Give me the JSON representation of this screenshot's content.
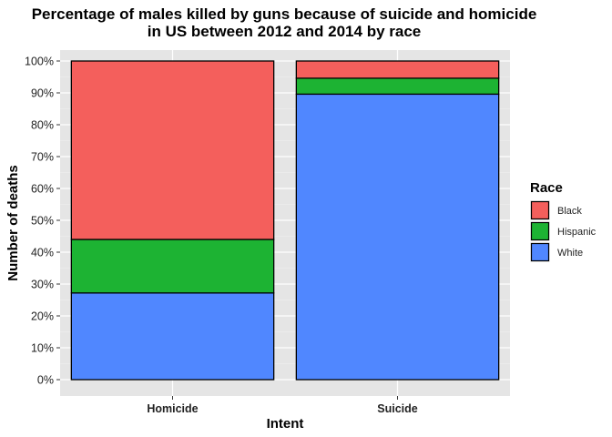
{
  "chart_data": {
    "type": "bar",
    "stacked": true,
    "title": [
      "Percentage of males killed by guns because of suicide and homicide",
      "in US between 2012 and 2014 by race"
    ],
    "xlabel": "Intent",
    "ylabel": "Number of deaths",
    "categories": [
      "Homicide",
      "Suicide"
    ],
    "ylim": [
      0,
      1
    ],
    "yticks": [
      0,
      0.1,
      0.2,
      0.3,
      0.4,
      0.5,
      0.6,
      0.7,
      0.8,
      0.9,
      1.0
    ],
    "ytick_labels": [
      "0%",
      "10%",
      "20%",
      "30%",
      "40%",
      "50%",
      "60%",
      "70%",
      "80%",
      "90%",
      "100%"
    ],
    "series": [
      {
        "name": "White",
        "color": "#5087FF",
        "values": [
          0.272,
          0.896
        ]
      },
      {
        "name": "Hispanic",
        "color": "#1DB333",
        "values": [
          0.168,
          0.05
        ]
      },
      {
        "name": "Black",
        "color": "#F45F5C",
        "values": [
          0.56,
          0.054
        ]
      }
    ],
    "legend": {
      "title": "Race",
      "position": "right",
      "entries": [
        "Black",
        "Hispanic",
        "White"
      ]
    },
    "grid": true,
    "panel_background": "#E5E5E5"
  }
}
